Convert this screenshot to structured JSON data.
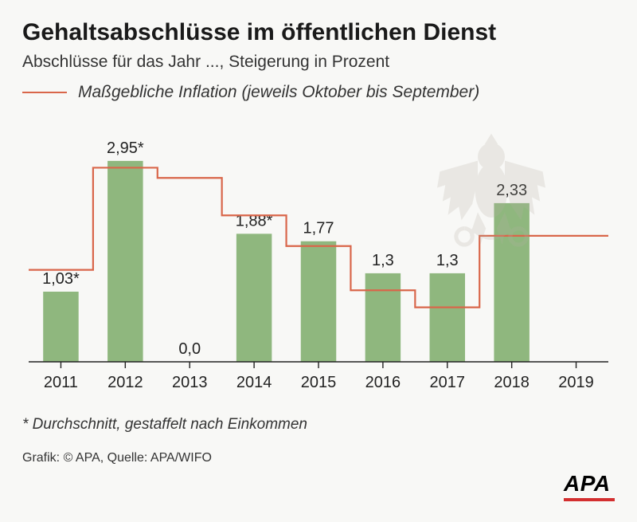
{
  "title": "Gehaltsabschlüsse im öffentlichen Dienst",
  "subtitle": "Abschlüsse für das Jahr ..., Steigerung in Prozent",
  "legend": {
    "line_color": "#d9664a",
    "label": "Maßgebliche Inflation (jeweils Oktober bis September)"
  },
  "chart": {
    "type": "bar-with-step-line",
    "categories": [
      "2011",
      "2012",
      "2013",
      "2014",
      "2015",
      "2016",
      "2017",
      "2018",
      "2019"
    ],
    "bars": {
      "values": [
        1.03,
        2.95,
        0.0,
        1.88,
        1.77,
        1.3,
        1.3,
        2.33,
        null
      ],
      "labels": [
        "1,03*",
        "2,95*",
        "0,0",
        "1,88*",
        "1,77",
        "1,3",
        "1,3",
        "2,33",
        ""
      ],
      "color": "#8fb77e",
      "width_frac": 0.55
    },
    "inflation_line": {
      "values": [
        1.35,
        2.85,
        2.7,
        2.15,
        1.7,
        1.05,
        0.8,
        1.85,
        1.85
      ],
      "color": "#d9664a",
      "stroke_width": 2.2
    },
    "y": {
      "min": 0,
      "max": 3.3
    },
    "axis_color": "#222",
    "tick_color": "#222",
    "background": "#f8f8f6",
    "label_fontsize": 20,
    "xlabel_fontsize": 20
  },
  "footnote": "* Durchschnitt, gestaffelt nach Einkommen",
  "credits": "Grafik: © APA, Quelle: APA/WIFO",
  "logo": {
    "text": "APA",
    "underline_color": "#d32f2f"
  }
}
